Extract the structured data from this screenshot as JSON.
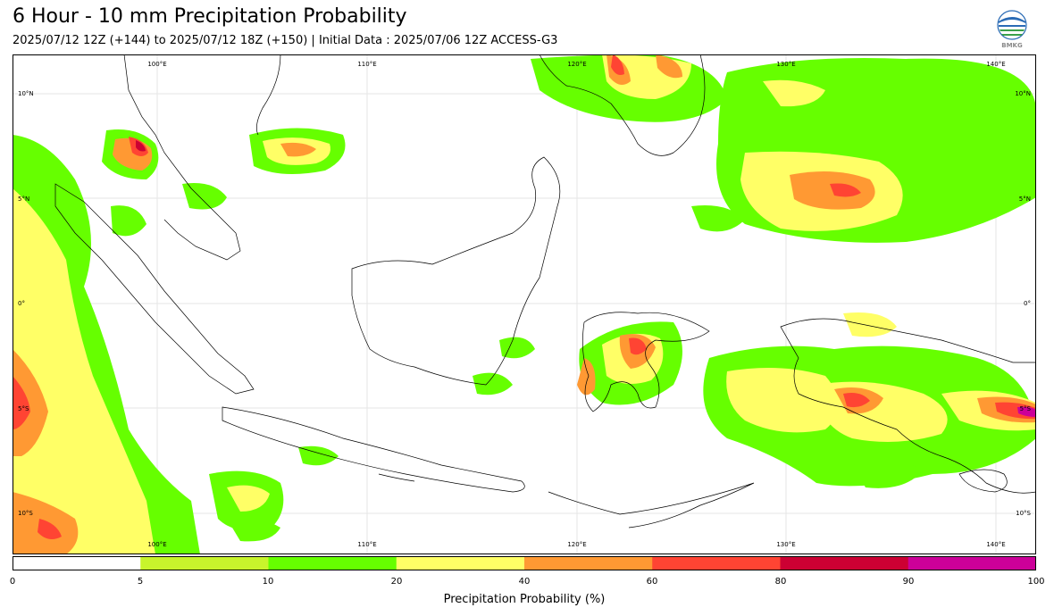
{
  "title": "6 Hour - 10 mm Precipitation Probability",
  "subtitle": "2025/07/12 12Z (+144) to 2025/07/12 18Z (+150) | Initial Data : 2025/07/06 12Z ACCESS-G3",
  "logo": {
    "text": "BMKG",
    "icon": "bmkg-logo"
  },
  "map": {
    "lon_labels": [
      "100°E",
      "110°E",
      "120°E",
      "130°E",
      "140°E"
    ],
    "lat_labels": [
      "10°N",
      "5°N",
      "0°",
      "5°S",
      "10°S"
    ]
  },
  "colorbar": {
    "label": "Precipitation Probability (%)",
    "ticks": [
      "0",
      "5",
      "10",
      "20",
      "40",
      "60",
      "80",
      "90",
      "100"
    ],
    "bins": [
      {
        "from": 0,
        "to": 5,
        "color": "#ffffff"
      },
      {
        "from": 5,
        "to": 10,
        "color": "#c8f42c"
      },
      {
        "from": 10,
        "to": 20,
        "color": "#66ff00"
      },
      {
        "from": 20,
        "to": 40,
        "color": "#ffff66"
      },
      {
        "from": 40,
        "to": 60,
        "color": "#ff9933"
      },
      {
        "from": 60,
        "to": 80,
        "color": "#ff4433"
      },
      {
        "from": 80,
        "to": 90,
        "color": "#cc0033"
      },
      {
        "from": 90,
        "to": 100,
        "color": "#cc0099"
      }
    ]
  }
}
